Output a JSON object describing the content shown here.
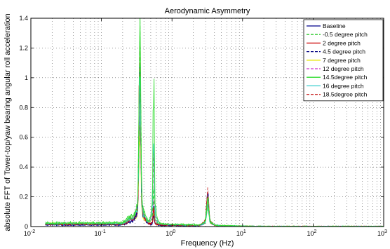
{
  "chart_data": {
    "type": "line",
    "title": "Aerodynamic Asymmetry",
    "xlabel": "Frequency (Hz)",
    "ylabel": "absolute FFT of Tower-top/yaw bearing angular roll acceleration",
    "xscale": "log",
    "xlim": [
      0.01,
      1000
    ],
    "ylim": [
      0,
      1.4
    ],
    "grid": true,
    "legend_position": "top-right",
    "x_tick_labels": [
      {
        "base": "10",
        "exp": "-2"
      },
      {
        "base": "10",
        "exp": "-1"
      },
      {
        "base": "10",
        "exp": "0"
      },
      {
        "base": "10",
        "exp": "1"
      },
      {
        "base": "10",
        "exp": "2"
      },
      {
        "base": "10",
        "exp": "3"
      }
    ],
    "y_tick_labels": [
      "0",
      "0.2",
      "0.4",
      "0.6",
      "0.8",
      "1",
      "1.2",
      "1.4"
    ],
    "series": [
      {
        "name": "Baseline",
        "color": "#00008b",
        "dash": "solid",
        "floor": 0.01,
        "peak1": 0.84,
        "peak2": 0.05,
        "peak3": 0.17
      },
      {
        "name": "-0.5  degree pitch",
        "color": "#33cc33",
        "dash": "5,3",
        "floor": 0.02,
        "peak1": 1.13,
        "peak2": 0.2,
        "peak3": 0.15
      },
      {
        "name": "2     degree pitch",
        "color": "#cc0000",
        "dash": "solid",
        "floor": 0.015,
        "peak1": 0.92,
        "peak2": 0.08,
        "peak3": 0.19
      },
      {
        "name": "4.5  degree pitch",
        "color": "#000080",
        "dash": "5,3",
        "floor": 0.012,
        "peak1": 0.9,
        "peak2": 0.1,
        "peak3": 0.16
      },
      {
        "name": "7     degree pitch",
        "color": "#e6e600",
        "dash": "solid",
        "floor": 0.02,
        "peak1": 0.55,
        "peak2": 0.06,
        "peak3": 0.12
      },
      {
        "name": "12    degree pitch",
        "color": "#cc33cc",
        "dash": "5,3",
        "floor": 0.015,
        "peak1": 0.7,
        "peak2": 0.12,
        "peak3": 0.14
      },
      {
        "name": "14.5degree pitch",
        "color": "#33dd33",
        "dash": "solid",
        "floor": 0.025,
        "peak1": 1.08,
        "peak2": 0.82,
        "peak3": 0.13
      },
      {
        "name": "16    degree pitch",
        "color": "#33cccc",
        "dash": "solid",
        "floor": 0.02,
        "peak1": 0.86,
        "peak2": 0.55,
        "peak3": 0.11
      },
      {
        "name": "18.5degree pitch",
        "color": "#cc3333",
        "dash": "5,3",
        "floor": 0.018,
        "peak1": 0.95,
        "peak2": 0.45,
        "peak3": 0.18
      }
    ]
  }
}
